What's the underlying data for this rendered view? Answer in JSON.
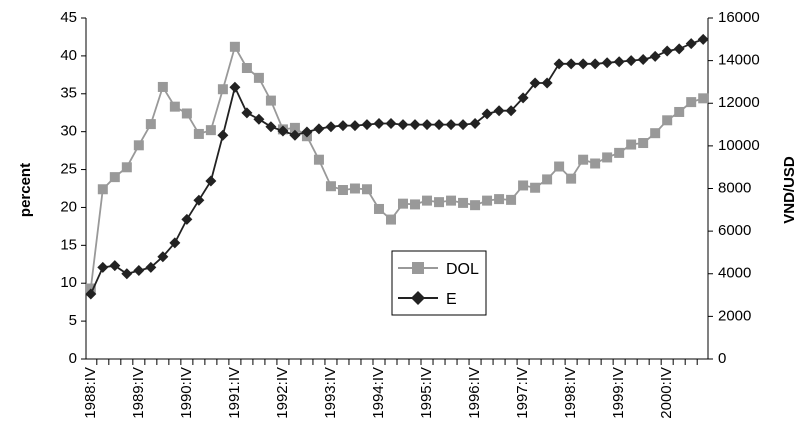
{
  "chart_data": {
    "type": "line",
    "x": [
      "1988:IV",
      "1989:I",
      "1989:II",
      "1989:III",
      "1989:IV",
      "1990:I",
      "1990:II",
      "1990:III",
      "1990:IV",
      "1991:I",
      "1991:II",
      "1991:III",
      "1991:IV",
      "1992:I",
      "1992:II",
      "1992:III",
      "1992:IV",
      "1993:I",
      "1993:II",
      "1993:III",
      "1993:IV",
      "1994:I",
      "1994:II",
      "1994:III",
      "1994:IV",
      "1995:I",
      "1995:II",
      "1995:III",
      "1995:IV",
      "1996:I",
      "1996:II",
      "1996:III",
      "1996:IV",
      "1997:I",
      "1997:II",
      "1997:III",
      "1997:IV",
      "1998:I",
      "1998:II",
      "1998:III",
      "1998:IV",
      "1999:I",
      "1999:II",
      "1999:III",
      "1999:IV",
      "2000:I",
      "2000:II",
      "2000:III",
      "2000:IV",
      "2001:I",
      "2001:II",
      "2001:III"
    ],
    "x_tick_labels": [
      "1988:IV",
      "1989:IV",
      "1990:IV",
      "1991:IV",
      "1992:IV",
      "1993:IV",
      "1994:IV",
      "1995:IV",
      "1996:IV",
      "1997:IV",
      "1998:IV",
      "1999:IV",
      "2000:IV"
    ],
    "series": [
      {
        "name": "DOL",
        "axis": "left",
        "color": "#999999",
        "marker": "square",
        "values": [
          9.3,
          22.4,
          24.0,
          25.3,
          28.2,
          31.0,
          35.9,
          33.3,
          32.4,
          29.7,
          30.2,
          35.6,
          41.2,
          38.4,
          37.1,
          34.1,
          30.3,
          30.5,
          29.4,
          26.3,
          22.8,
          22.3,
          22.5,
          22.4,
          19.8,
          18.4,
          20.5,
          20.4,
          20.9,
          20.7,
          20.9,
          20.6,
          20.3,
          20.9,
          21.1,
          21.0,
          22.9,
          22.6,
          23.7,
          25.4,
          23.8,
          26.3,
          25.8,
          26.6,
          27.2,
          28.3,
          28.5,
          29.8,
          31.5,
          32.6,
          33.9,
          34.4
        ]
      },
      {
        "name": "E",
        "axis": "right",
        "color": "#222222",
        "marker": "diamond",
        "values": [
          3050,
          4300,
          4380,
          4000,
          4150,
          4300,
          4800,
          5450,
          6550,
          7450,
          8350,
          10500,
          12750,
          11550,
          11250,
          10900,
          10700,
          10500,
          10650,
          10800,
          10900,
          10950,
          10950,
          11000,
          11050,
          11050,
          11000,
          11000,
          11000,
          11000,
          11000,
          11000,
          11050,
          11500,
          11650,
          11650,
          12250,
          12950,
          12950,
          13850,
          13850,
          13850,
          13850,
          13900,
          13950,
          14000,
          14050,
          14200,
          14450,
          14550,
          14800,
          15000
        ]
      }
    ],
    "ylabel": "percent",
    "ylim": [
      0,
      45
    ],
    "yticks": [
      0,
      5,
      10,
      15,
      20,
      25,
      30,
      35,
      40,
      45
    ],
    "y2label": "VND/USD",
    "y2lim": [
      0,
      16000
    ],
    "y2ticks": [
      0,
      2000,
      4000,
      6000,
      8000,
      10000,
      12000,
      14000,
      16000
    ],
    "grid": false,
    "legend_position": "center"
  }
}
